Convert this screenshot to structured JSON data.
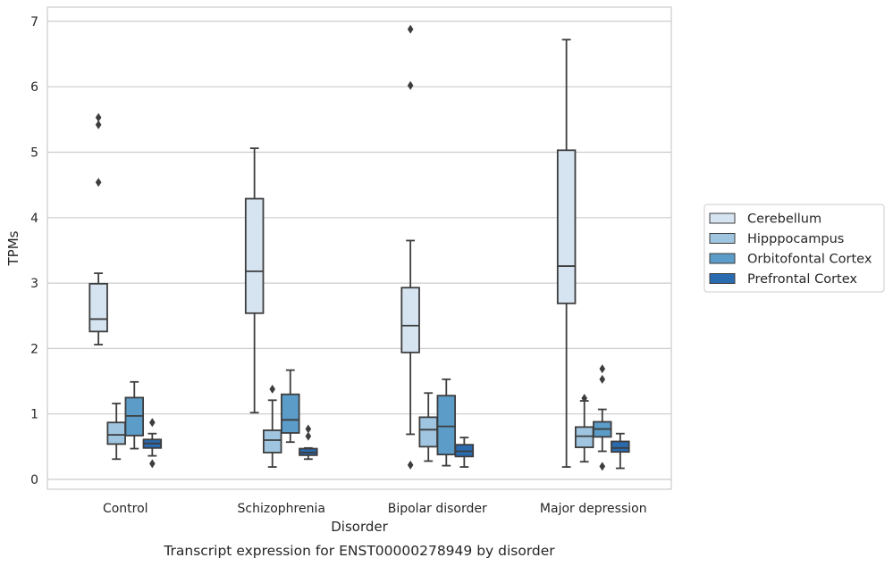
{
  "chart_data": {
    "type": "box",
    "title": "",
    "caption": "Transcript expression for ENST00000278949 by disorder",
    "xlabel": "Disorder",
    "ylabel": "TPMs",
    "ylim": [
      -0.15,
      7.25
    ],
    "yticks": [
      0,
      1,
      2,
      3,
      4,
      5,
      6,
      7
    ],
    "grid": "horizontal",
    "legend_position": "right",
    "categories": [
      "Control",
      "Schizophrenia",
      "Bipolar disorder",
      "Major depression"
    ],
    "series": [
      {
        "name": "Cerebellum",
        "color": "#d6e4f2",
        "boxes": [
          {
            "low": 2.06,
            "q1": 2.26,
            "median": 2.45,
            "q3": 2.99,
            "high": 3.15,
            "outliers": [
              4.54,
              5.42,
              5.53
            ]
          },
          {
            "low": 1.02,
            "q1": 2.54,
            "median": 3.18,
            "q3": 4.29,
            "high": 5.06,
            "outliers": []
          },
          {
            "low": 0.69,
            "q1": 1.94,
            "median": 2.35,
            "q3": 2.93,
            "high": 3.65,
            "outliers": [
              0.22,
              6.02,
              6.88
            ]
          },
          {
            "low": 0.19,
            "q1": 2.69,
            "median": 3.26,
            "q3": 5.03,
            "high": 6.72,
            "outliers": []
          }
        ]
      },
      {
        "name": "Hipppocampus",
        "color": "#9fc5e0",
        "boxes": [
          {
            "low": 0.31,
            "q1": 0.54,
            "median": 0.68,
            "q3": 0.87,
            "high": 1.16,
            "outliers": []
          },
          {
            "low": 0.19,
            "q1": 0.41,
            "median": 0.6,
            "q3": 0.75,
            "high": 1.21,
            "outliers": [
              1.38
            ]
          },
          {
            "low": 0.28,
            "q1": 0.5,
            "median": 0.76,
            "q3": 0.95,
            "high": 1.32,
            "outliers": []
          },
          {
            "low": 0.27,
            "q1": 0.49,
            "median": 0.66,
            "q3": 0.8,
            "high": 1.2,
            "outliers": [
              1.24
            ]
          }
        ]
      },
      {
        "name": "Orbitofontal Cortex",
        "color": "#5b9cc9",
        "boxes": [
          {
            "low": 0.47,
            "q1": 0.67,
            "median": 0.97,
            "q3": 1.25,
            "high": 1.49,
            "outliers": []
          },
          {
            "low": 0.57,
            "q1": 0.71,
            "median": 0.91,
            "q3": 1.3,
            "high": 1.67,
            "outliers": []
          },
          {
            "low": 0.21,
            "q1": 0.38,
            "median": 0.81,
            "q3": 1.28,
            "high": 1.53,
            "outliers": []
          },
          {
            "low": 0.43,
            "q1": 0.65,
            "median": 0.77,
            "q3": 0.88,
            "high": 1.07,
            "outliers": [
              0.2,
              1.53,
              1.69
            ]
          }
        ]
      },
      {
        "name": "Prefrontal Cortex",
        "color": "#2a6bb0",
        "boxes": [
          {
            "low": 0.36,
            "q1": 0.48,
            "median": 0.55,
            "q3": 0.61,
            "high": 0.7,
            "outliers": [
              0.24,
              0.87
            ]
          },
          {
            "low": 0.31,
            "q1": 0.37,
            "median": 0.41,
            "q3": 0.47,
            "high": 0.48,
            "outliers": [
              0.66,
              0.77
            ]
          },
          {
            "low": 0.19,
            "q1": 0.35,
            "median": 0.43,
            "q3": 0.53,
            "high": 0.64,
            "outliers": []
          },
          {
            "low": 0.17,
            "q1": 0.42,
            "median": 0.48,
            "q3": 0.58,
            "high": 0.7,
            "outliers": []
          }
        ]
      }
    ]
  }
}
